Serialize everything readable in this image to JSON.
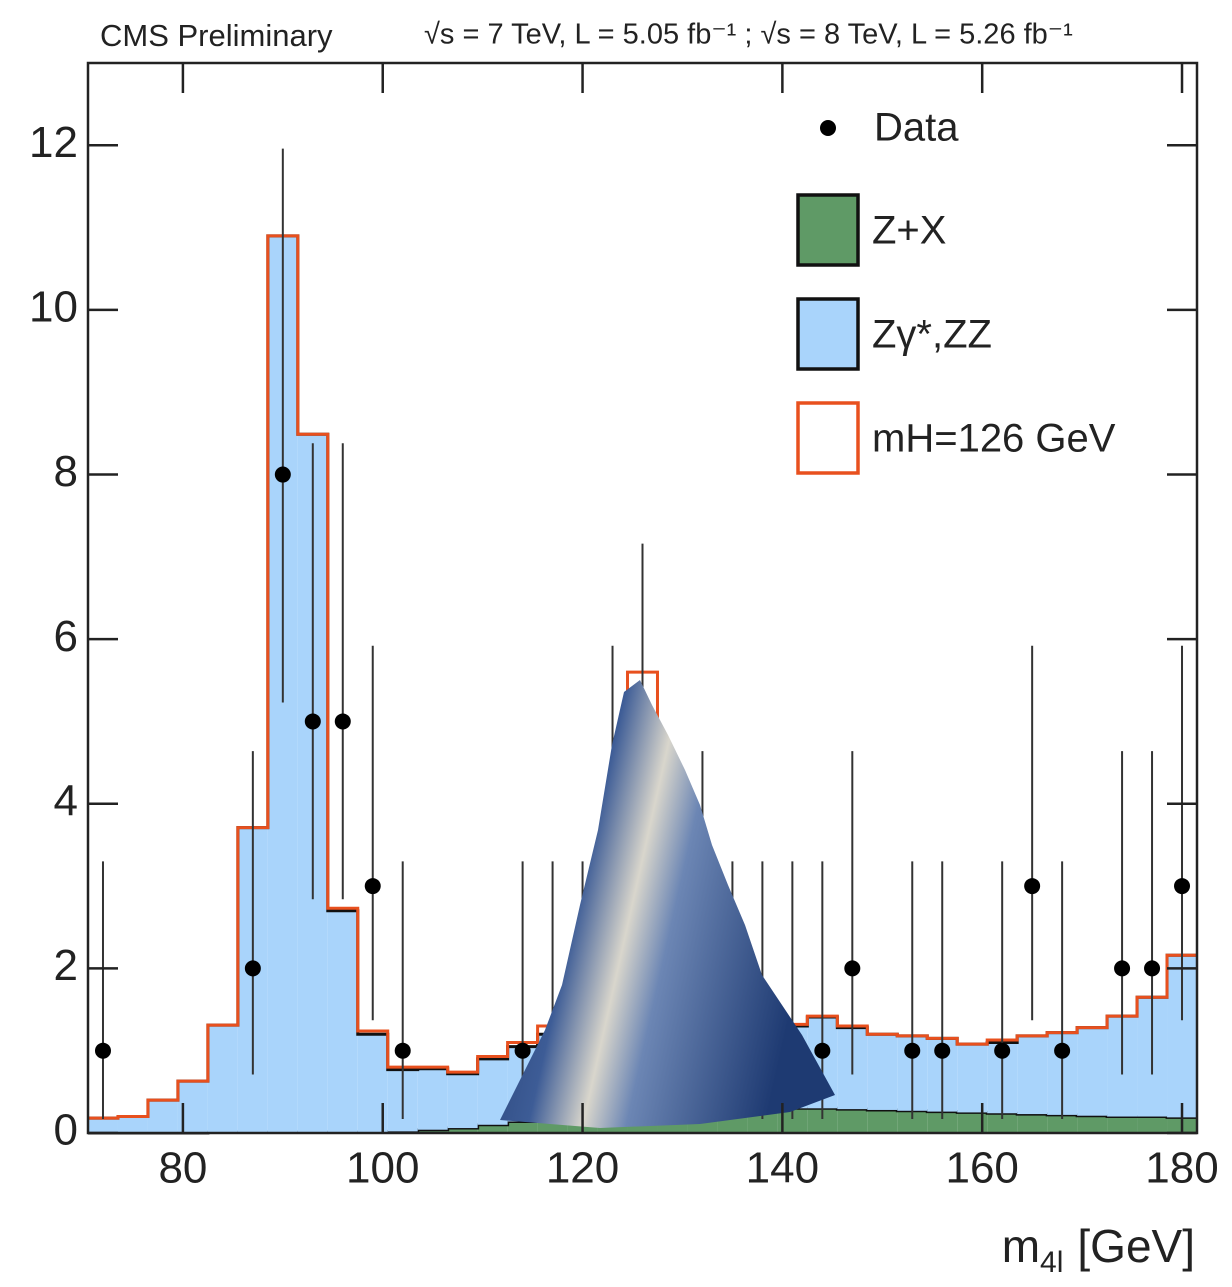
{
  "chart_data": {
    "type": "histogram",
    "title": "CMS Preliminary",
    "subtitle": "√s = 7 TeV, L = 5.05 fb⁻¹ ; √s = 8 TeV, L = 5.26 fb⁻¹",
    "x_label": {
      "symbol": "m",
      "subscript": "4l",
      "unit": "[GeV]"
    },
    "bins": [
      70.5,
      73.5,
      76.5,
      79.5,
      82.5,
      85.5,
      88.5,
      91.5,
      94.5,
      97.5,
      100.5,
      103.5,
      106.5,
      109.5,
      112.5,
      115.5,
      118.5,
      121.5,
      124.5,
      127.5,
      130.5,
      133.5,
      136.5,
      139.5,
      142.5,
      145.5,
      148.5,
      151.5,
      154.5,
      157.5,
      160.5,
      163.5,
      166.5,
      169.5,
      172.5,
      175.5,
      178.5,
      181.5
    ],
    "series": [
      {
        "name": "Z+X",
        "color": "#5f9a66",
        "filled": true,
        "values": [
          0,
          0,
          0,
          0,
          0.01,
          0.01,
          0.01,
          0.01,
          0.01,
          0.01,
          0.02,
          0.04,
          0.06,
          0.1,
          0.14,
          0.18,
          0.22,
          0.25,
          0.27,
          0.28,
          0.29,
          0.3,
          0.3,
          0.3,
          0.3,
          0.29,
          0.28,
          0.27,
          0.26,
          0.25,
          0.24,
          0.23,
          0.22,
          0.21,
          0.2,
          0.2,
          0.19
        ]
      },
      {
        "name": "Zγ*,ZZ",
        "color": "#a9d4fb",
        "filled": true,
        "values": [
          0.18,
          0.2,
          0.4,
          0.63,
          1.3,
          3.7,
          10.89,
          8.48,
          2.69,
          1.19,
          0.75,
          0.74,
          0.66,
          0.8,
          0.91,
          1.02,
          0.98,
          0.95,
          0.93,
          0.92,
          0.91,
          0.9,
          0.95,
          1.0,
          1.11,
          0.99,
          0.92,
          0.91,
          0.89,
          0.83,
          0.86,
          0.95,
          1.0,
          1.07,
          1.22,
          1.45,
          1.97
        ]
      },
      {
        "name": "mH=126 GeV",
        "color": "#e8501e",
        "filled": false,
        "values": [
          0,
          0,
          0,
          0,
          0,
          0,
          0,
          0,
          0.03,
          0.04,
          0.03,
          0.02,
          0.02,
          0.03,
          0.05,
          0.1,
          0.3,
          1.8,
          4.4,
          1.8,
          0.3,
          0.1,
          0.03,
          0.02,
          0.01,
          0.02,
          0,
          0,
          0,
          0,
          0.03,
          0,
          0,
          0,
          0,
          0,
          0
        ]
      }
    ],
    "data_points": {
      "name": "Data",
      "color": "#000000",
      "x": [
        72,
        87,
        90,
        93,
        96,
        99,
        102,
        114,
        117,
        120,
        123,
        126,
        132,
        135,
        138,
        141,
        144,
        147,
        153,
        156,
        162,
        165,
        168,
        174,
        177,
        180
      ],
      "values": [
        1,
        2,
        8,
        5,
        5,
        3,
        1,
        1,
        1,
        1,
        3,
        4,
        2,
        1,
        1,
        1,
        1,
        2,
        1,
        1,
        1,
        3,
        1,
        2,
        2,
        3
      ],
      "errors_low": [
        0.83,
        1.29,
        2.77,
        2.16,
        2.16,
        1.63,
        0.83,
        0.83,
        0.83,
        0.83,
        1.63,
        1.91,
        1.29,
        0.83,
        0.83,
        0.83,
        0.83,
        1.29,
        0.83,
        0.83,
        0.83,
        1.63,
        0.83,
        1.29,
        1.29,
        1.63
      ],
      "errors_high": [
        2.3,
        2.64,
        3.96,
        3.38,
        3.38,
        2.92,
        2.3,
        2.3,
        2.3,
        2.3,
        2.92,
        3.16,
        2.64,
        2.3,
        2.3,
        2.3,
        2.3,
        2.64,
        2.3,
        2.3,
        2.3,
        2.92,
        2.3,
        2.64,
        2.64,
        2.92
      ]
    },
    "xlim": [
      70.5,
      181.5
    ],
    "ylim": [
      0,
      13
    ],
    "xticks": [
      80,
      100,
      120,
      140,
      160,
      180
    ],
    "yticks": [
      0,
      2,
      4,
      6,
      8,
      10,
      12
    ],
    "legend": "upper right"
  }
}
